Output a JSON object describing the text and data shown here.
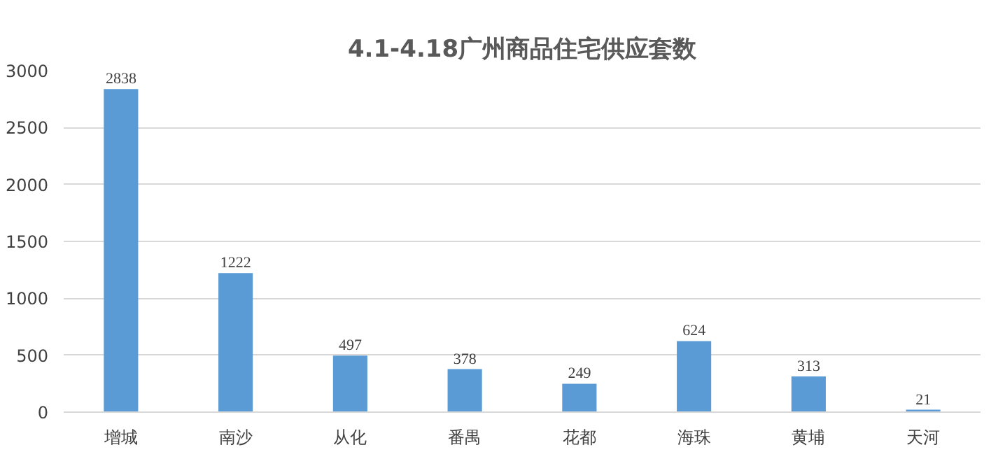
{
  "chart_data": {
    "type": "bar",
    "title": "4.1-4.18广州商品住宅供应套数",
    "categories": [
      "增城",
      "南沙",
      "从化",
      "番禺",
      "花都",
      "海珠",
      "黄埔",
      "天河"
    ],
    "values": [
      2838,
      1222,
      497,
      378,
      249,
      624,
      313,
      21
    ],
    "color": "#5b9bd5",
    "ylim": [
      0,
      3000
    ],
    "yticks": [
      0,
      500,
      1000,
      1500,
      2000,
      2500,
      3000
    ],
    "grid": "y",
    "data_labels": true
  }
}
